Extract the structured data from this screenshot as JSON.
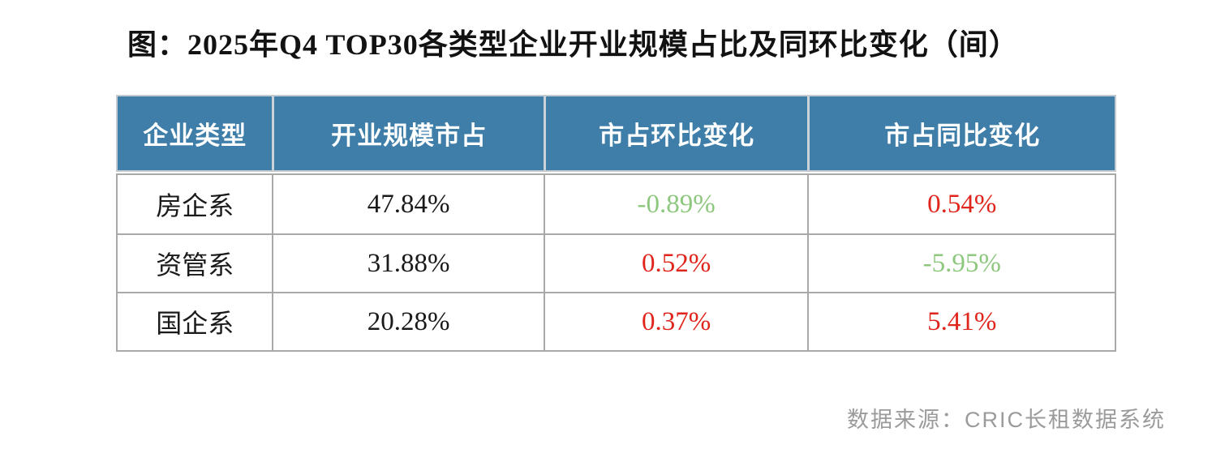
{
  "title": "图：2025年Q4 TOP30各类型企业开业规模占比及同环比变化（间）",
  "source_note": "数据来源：CRIC长租数据系统",
  "colors": {
    "header_bg": "#3e7ea8",
    "header_text": "#ffffff",
    "positive_red": "#e0251c",
    "negative_green": "#8dc87e",
    "body_text": "#1a1a1a",
    "grid_line": "#a9a9a9",
    "source_text": "#9b9b9b"
  },
  "chart_data": {
    "type": "table",
    "title": "2025年Q4 TOP30各类型企业开业规模占比及同环比变化（间）",
    "columns": [
      "企业类型",
      "开业规模市占",
      "市占环比变化",
      "市占同比变化"
    ],
    "rows": [
      {
        "category": "房企系",
        "share": "47.84%",
        "qoq": "-0.89%",
        "qoq_trend": "down",
        "yoy": "0.54%",
        "yoy_trend": "up"
      },
      {
        "category": "资管系",
        "share": "31.88%",
        "qoq": "0.52%",
        "qoq_trend": "up",
        "yoy": "-5.95%",
        "yoy_trend": "down"
      },
      {
        "category": "国企系",
        "share": "20.28%",
        "qoq": "0.37%",
        "qoq_trend": "up",
        "yoy": "5.41%",
        "yoy_trend": "up"
      }
    ]
  }
}
